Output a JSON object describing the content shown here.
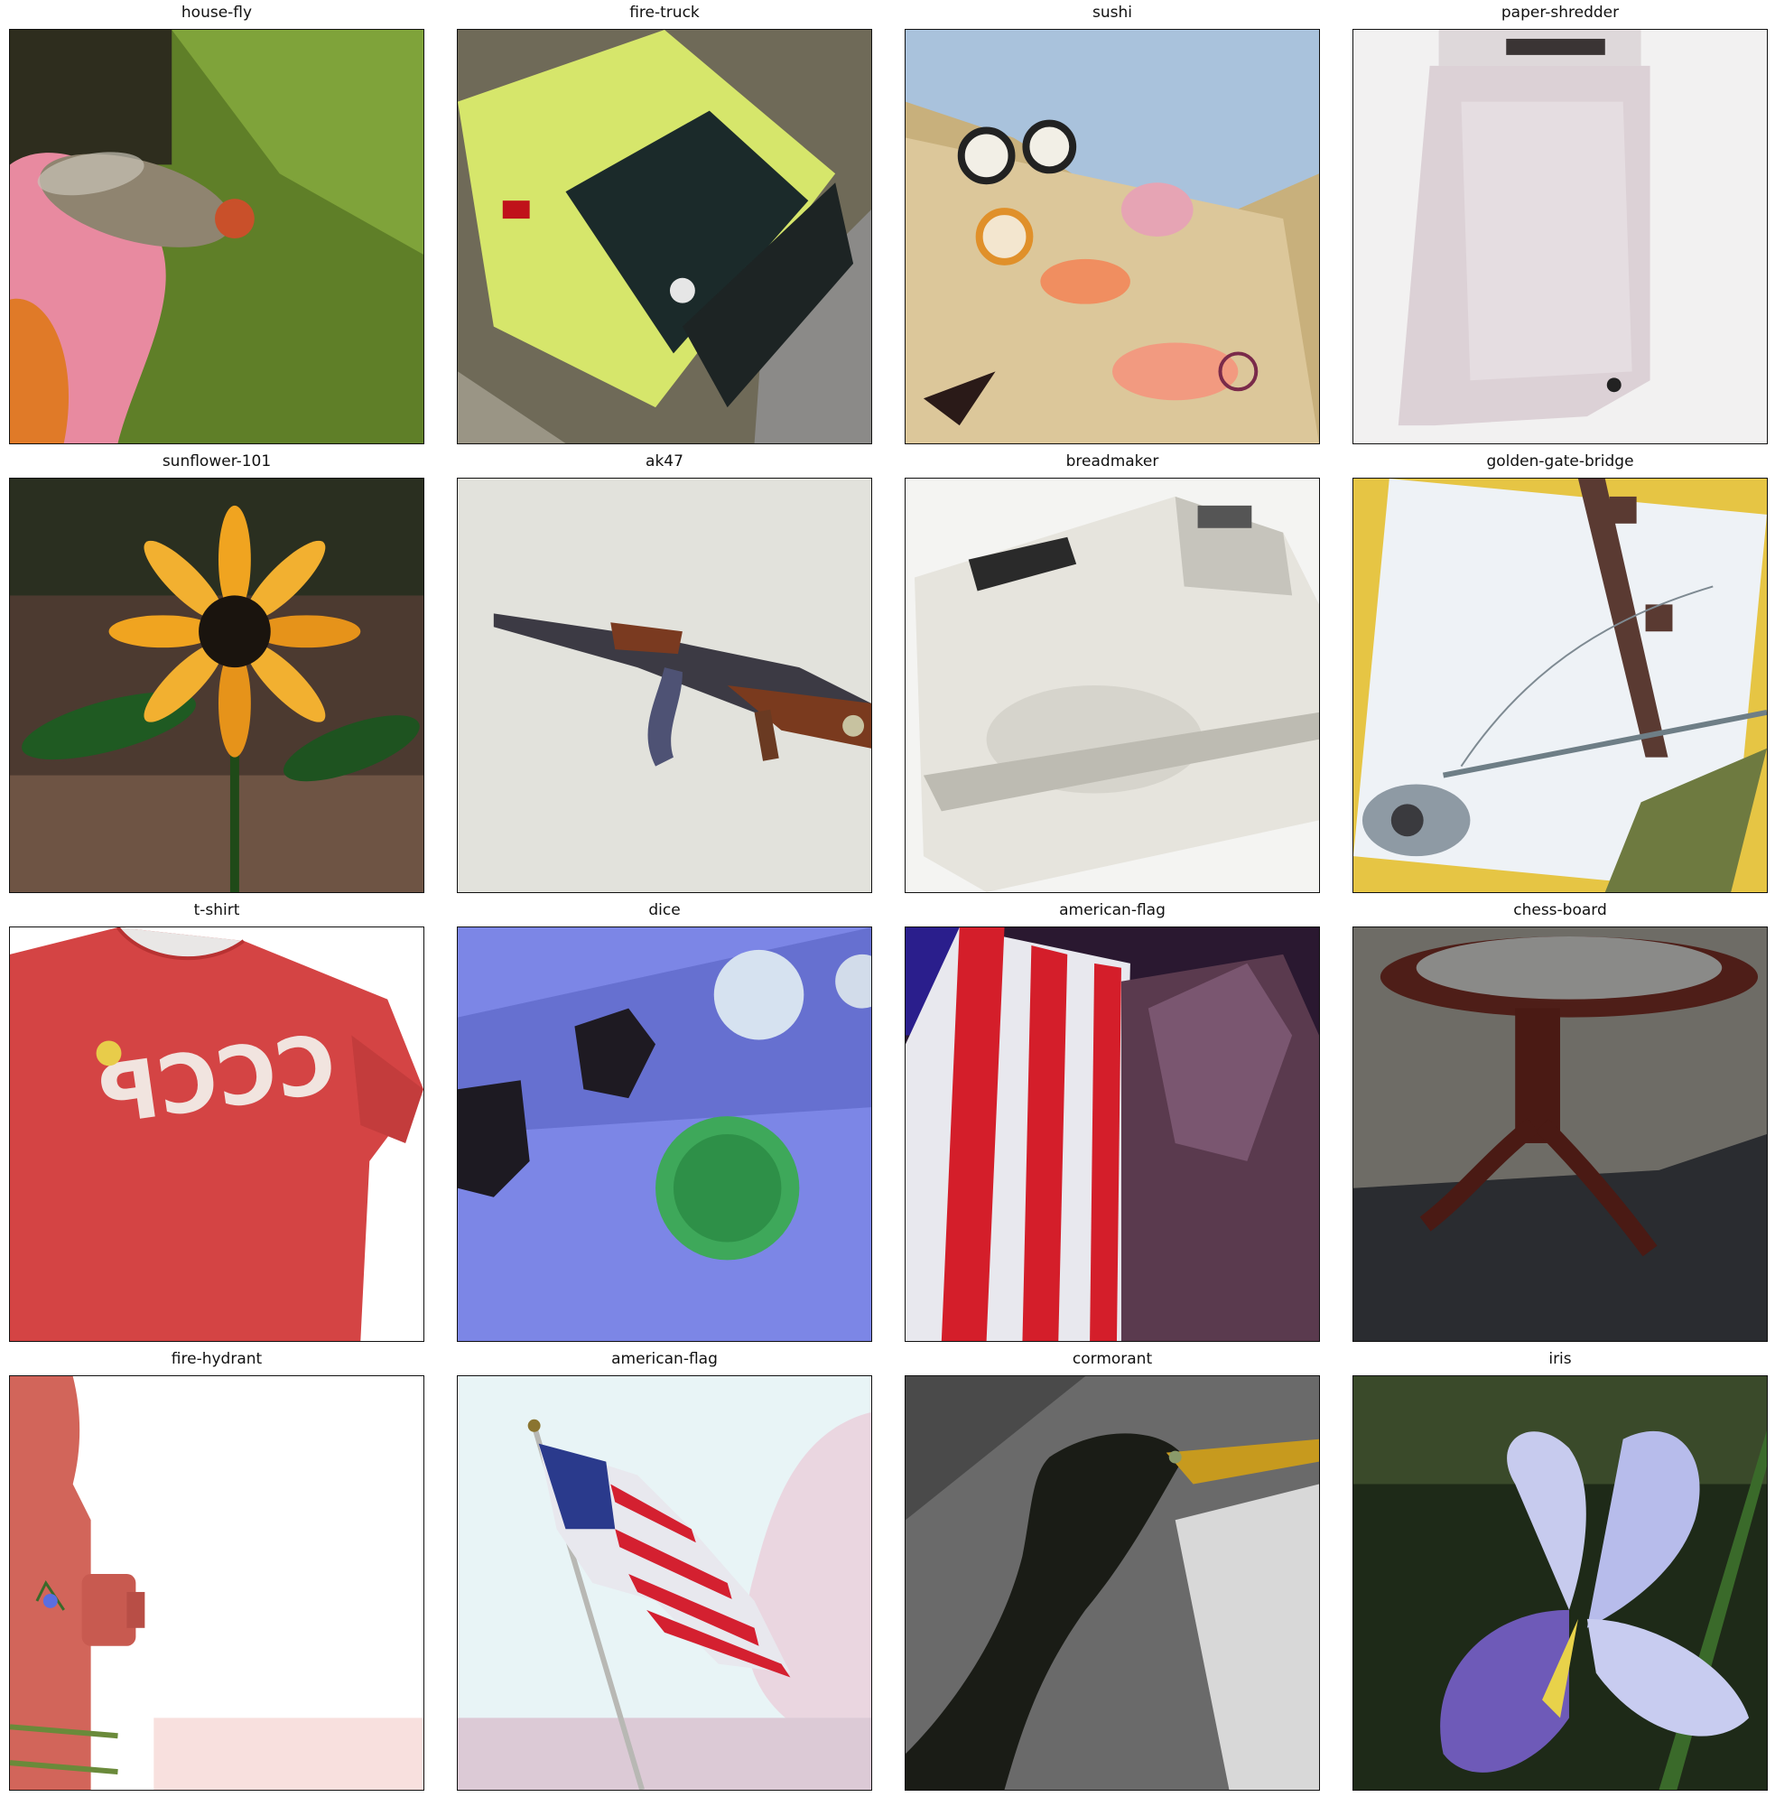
{
  "figure": {
    "panels": [
      {
        "label": "house-fly",
        "scene": "housefly-icon"
      },
      {
        "label": "fire-truck",
        "scene": "firetruck-icon"
      },
      {
        "label": "sushi",
        "scene": "sushi-icon"
      },
      {
        "label": "paper-shredder",
        "scene": "shredder-icon"
      },
      {
        "label": "sunflower-101",
        "scene": "sunflower-icon"
      },
      {
        "label": "ak47",
        "scene": "rifle-icon"
      },
      {
        "label": "breadmaker",
        "scene": "breadmaker-icon"
      },
      {
        "label": "golden-gate-bridge",
        "scene": "bridge-icon"
      },
      {
        "label": "t-shirt",
        "scene": "tshirt-icon"
      },
      {
        "label": "dice",
        "scene": "dice-icon"
      },
      {
        "label": "american-flag",
        "scene": "flag-icon"
      },
      {
        "label": "chess-board",
        "scene": "chessboard-icon"
      },
      {
        "label": "fire-hydrant",
        "scene": "hydrant-icon"
      },
      {
        "label": "american-flag",
        "scene": "flag-icon"
      },
      {
        "label": "cormorant",
        "scene": "cormorant-icon"
      },
      {
        "label": "iris",
        "scene": "iris-icon"
      }
    ]
  }
}
